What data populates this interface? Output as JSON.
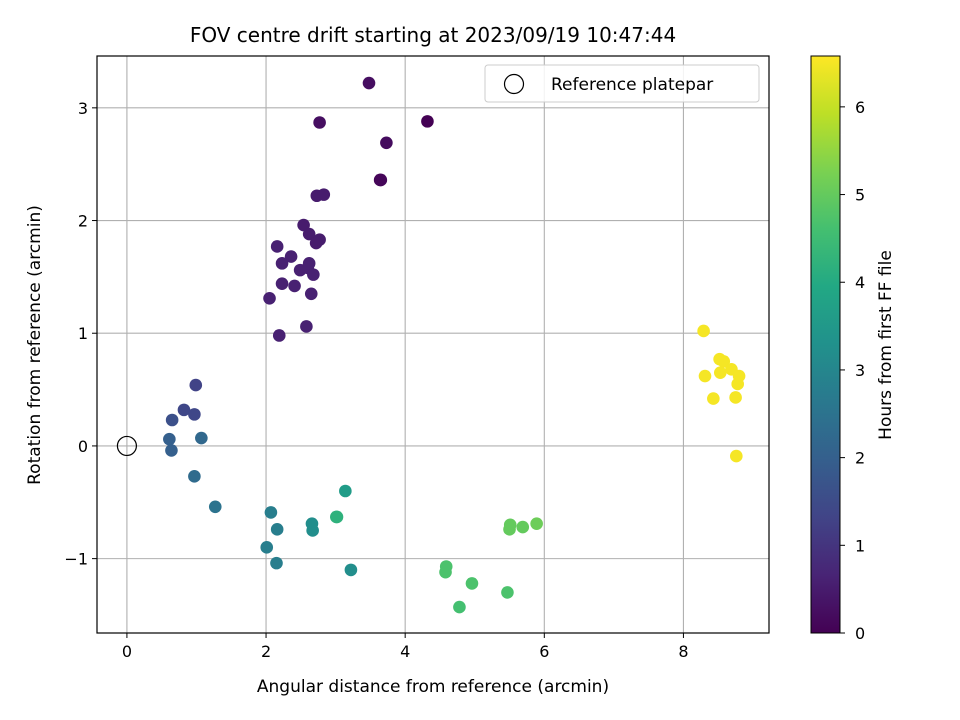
{
  "chart_data": {
    "type": "scatter",
    "title": "FOV centre drift starting at 2023/09/19 10:47:44",
    "xlabel": "Angular distance from reference (arcmin)",
    "ylabel": "Rotation from reference (arcmin)",
    "xlim": [
      -0.43,
      9.23
    ],
    "ylim": [
      -1.66,
      3.46
    ],
    "xticks": [
      0,
      2,
      4,
      6,
      8
    ],
    "yticks": [
      -1,
      0,
      1,
      2,
      3
    ],
    "xtick_labels": [
      "0",
      "2",
      "4",
      "6",
      "8"
    ],
    "ytick_labels": [
      "−1",
      "0",
      "1",
      "2",
      "3"
    ],
    "grid": true,
    "legend": {
      "placement": "top-right",
      "entries": [
        "Reference platepar"
      ]
    },
    "reference_point": {
      "x": 0,
      "y": 0
    },
    "colorbar": {
      "label": "Hours from first FF file",
      "range": [
        0,
        6.58
      ],
      "ticks": [
        0,
        1,
        2,
        3,
        4,
        5,
        6
      ],
      "colormap": "viridis"
    },
    "points": [
      {
        "x": 3.48,
        "y": 3.22,
        "c": 0.25
      },
      {
        "x": 2.77,
        "y": 2.87,
        "c": 0.25
      },
      {
        "x": 4.32,
        "y": 2.88,
        "c": 0.0
      },
      {
        "x": 3.73,
        "y": 2.69,
        "c": 0.2
      },
      {
        "x": 3.64,
        "y": 2.36,
        "c": 0.0
      },
      {
        "x": 3.65,
        "y": 2.36,
        "c": 0.1
      },
      {
        "x": 2.73,
        "y": 2.22,
        "c": 0.5
      },
      {
        "x": 2.83,
        "y": 2.23,
        "c": 0.5
      },
      {
        "x": 2.54,
        "y": 1.96,
        "c": 0.5
      },
      {
        "x": 2.62,
        "y": 1.88,
        "c": 0.5
      },
      {
        "x": 2.72,
        "y": 1.8,
        "c": 0.5
      },
      {
        "x": 2.77,
        "y": 1.83,
        "c": 0.5
      },
      {
        "x": 2.16,
        "y": 1.77,
        "c": 0.6
      },
      {
        "x": 2.36,
        "y": 1.68,
        "c": 0.6
      },
      {
        "x": 2.23,
        "y": 1.62,
        "c": 0.6
      },
      {
        "x": 2.49,
        "y": 1.56,
        "c": 0.6
      },
      {
        "x": 2.6,
        "y": 1.58,
        "c": 0.6
      },
      {
        "x": 2.62,
        "y": 1.62,
        "c": 0.6
      },
      {
        "x": 2.68,
        "y": 1.52,
        "c": 0.6
      },
      {
        "x": 2.23,
        "y": 1.44,
        "c": 0.6
      },
      {
        "x": 2.41,
        "y": 1.42,
        "c": 0.6
      },
      {
        "x": 2.65,
        "y": 1.35,
        "c": 0.6
      },
      {
        "x": 2.05,
        "y": 1.31,
        "c": 0.6
      },
      {
        "x": 2.58,
        "y": 1.06,
        "c": 0.6
      },
      {
        "x": 2.19,
        "y": 0.98,
        "c": 0.6
      },
      {
        "x": 0.99,
        "y": 0.54,
        "c": 1.3
      },
      {
        "x": 0.82,
        "y": 0.32,
        "c": 1.4
      },
      {
        "x": 0.97,
        "y": 0.28,
        "c": 1.4
      },
      {
        "x": 0.65,
        "y": 0.23,
        "c": 1.6
      },
      {
        "x": 1.07,
        "y": 0.07,
        "c": 2.2
      },
      {
        "x": 0.61,
        "y": 0.06,
        "c": 2.0
      },
      {
        "x": 0.64,
        "y": -0.04,
        "c": 2.0
      },
      {
        "x": 0.97,
        "y": -0.27,
        "c": 2.3
      },
      {
        "x": 1.27,
        "y": -0.54,
        "c": 2.5
      },
      {
        "x": 2.07,
        "y": -0.59,
        "c": 2.8
      },
      {
        "x": 2.16,
        "y": -0.74,
        "c": 2.8
      },
      {
        "x": 2.66,
        "y": -0.69,
        "c": 3.2
      },
      {
        "x": 2.67,
        "y": -0.75,
        "c": 3.2
      },
      {
        "x": 3.14,
        "y": -0.4,
        "c": 3.6
      },
      {
        "x": 3.01,
        "y": -0.63,
        "c": 4.2
      },
      {
        "x": 3.02,
        "y": -0.63,
        "c": 4.2
      },
      {
        "x": 2.01,
        "y": -0.9,
        "c": 2.8
      },
      {
        "x": 2.15,
        "y": -1.04,
        "c": 2.8
      },
      {
        "x": 3.22,
        "y": -1.1,
        "c": 3.2
      },
      {
        "x": 4.59,
        "y": -1.07,
        "c": 4.7
      },
      {
        "x": 4.58,
        "y": -1.12,
        "c": 4.7
      },
      {
        "x": 4.96,
        "y": -1.22,
        "c": 4.7
      },
      {
        "x": 4.78,
        "y": -1.43,
        "c": 4.6
      },
      {
        "x": 5.47,
        "y": -1.3,
        "c": 4.7
      },
      {
        "x": 5.51,
        "y": -0.7,
        "c": 5.0
      },
      {
        "x": 5.5,
        "y": -0.74,
        "c": 5.0
      },
      {
        "x": 5.69,
        "y": -0.72,
        "c": 5.0
      },
      {
        "x": 5.89,
        "y": -0.69,
        "c": 5.1
      },
      {
        "x": 8.29,
        "y": 1.02,
        "c": 6.5
      },
      {
        "x": 8.52,
        "y": 0.77,
        "c": 6.5
      },
      {
        "x": 8.58,
        "y": 0.75,
        "c": 6.5
      },
      {
        "x": 8.69,
        "y": 0.68,
        "c": 6.5
      },
      {
        "x": 8.53,
        "y": 0.65,
        "c": 6.5
      },
      {
        "x": 8.31,
        "y": 0.62,
        "c": 6.5
      },
      {
        "x": 8.8,
        "y": 0.62,
        "c": 6.5
      },
      {
        "x": 8.78,
        "y": 0.55,
        "c": 6.5
      },
      {
        "x": 8.43,
        "y": 0.42,
        "c": 6.5
      },
      {
        "x": 8.75,
        "y": 0.43,
        "c": 6.5
      },
      {
        "x": 8.76,
        "y": -0.09,
        "c": 6.5
      }
    ]
  }
}
